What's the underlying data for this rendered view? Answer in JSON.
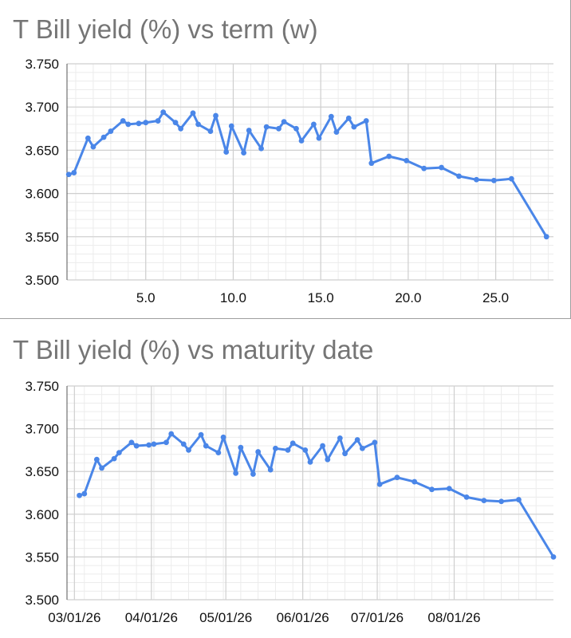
{
  "chart_data": [
    {
      "type": "line",
      "title": "T Bill yield (%) vs term (w)",
      "xlabel": "",
      "ylabel": "",
      "xlim": [
        0.5,
        28.3
      ],
      "ylim": [
        3.5,
        3.75
      ],
      "x_ticks": [
        "5.0",
        "10.0",
        "15.0",
        "20.0",
        "25.0"
      ],
      "y_ticks": [
        "3.750",
        "3.700",
        "3.650",
        "3.600",
        "3.550",
        "3.500"
      ],
      "grid": true,
      "legend": "none",
      "line_color": "#4a86e8",
      "series": [
        {
          "x": [
            0.6,
            0.9,
            1.7,
            2.0,
            2.6,
            3.0,
            3.7,
            4.0,
            4.6,
            5.0,
            5.7,
            6.0,
            6.7,
            7.0,
            7.7,
            8.0,
            8.7,
            9.0,
            9.6,
            9.9,
            10.6,
            10.9,
            11.6,
            11.9,
            12.6,
            12.9,
            13.6,
            13.9,
            14.6,
            14.9,
            15.6,
            15.9,
            16.6,
            16.9,
            17.6,
            17.9,
            18.9,
            19.9,
            20.9,
            21.9,
            22.9,
            23.9,
            24.9,
            25.9,
            27.9
          ],
          "values": [
            3.622,
            3.624,
            3.664,
            3.654,
            3.665,
            3.672,
            3.684,
            3.68,
            3.681,
            3.682,
            3.684,
            3.694,
            3.682,
            3.675,
            3.693,
            3.68,
            3.672,
            3.69,
            3.648,
            3.678,
            3.647,
            3.673,
            3.652,
            3.677,
            3.675,
            3.683,
            3.675,
            3.661,
            3.68,
            3.664,
            3.689,
            3.671,
            3.687,
            3.677,
            3.684,
            3.635,
            3.643,
            3.638,
            3.629,
            3.63,
            3.62,
            3.616,
            3.615,
            3.617,
            3.55
          ]
        }
      ]
    },
    {
      "type": "line",
      "title": "T Bill yield (%) vs maturity date",
      "xlabel": "",
      "ylabel": "",
      "xlim": [
        "2026-02-26",
        "2026-09-10"
      ],
      "ylim": [
        3.5,
        3.75
      ],
      "x_ticks": [
        "03/01/26",
        "04/01/26",
        "05/01/26",
        "06/01/26",
        "07/01/26",
        "08/01/26"
      ],
      "y_ticks": [
        "3.750",
        "3.700",
        "3.650",
        "3.600",
        "3.550",
        "3.500"
      ],
      "grid": true,
      "legend": "none",
      "line_color": "#4a86e8",
      "series": [
        {
          "x": [
            "2026-03-03",
            "2026-03-05",
            "2026-03-10",
            "2026-03-12",
            "2026-03-17",
            "2026-03-19",
            "2026-03-24",
            "2026-03-26",
            "2026-03-31",
            "2026-04-02",
            "2026-04-07",
            "2026-04-09",
            "2026-04-14",
            "2026-04-16",
            "2026-04-21",
            "2026-04-23",
            "2026-04-28",
            "2026-04-30",
            "2026-05-05",
            "2026-05-07",
            "2026-05-12",
            "2026-05-14",
            "2026-05-19",
            "2026-05-21",
            "2026-05-26",
            "2026-05-28",
            "2026-06-02",
            "2026-06-04",
            "2026-06-09",
            "2026-06-11",
            "2026-06-16",
            "2026-06-18",
            "2026-06-23",
            "2026-06-25",
            "2026-06-30",
            "2026-07-02",
            "2026-07-09",
            "2026-07-16",
            "2026-07-23",
            "2026-07-30",
            "2026-08-06",
            "2026-08-13",
            "2026-08-20",
            "2026-08-27",
            "2026-09-10"
          ],
          "values": [
            3.622,
            3.624,
            3.664,
            3.654,
            3.665,
            3.672,
            3.684,
            3.68,
            3.681,
            3.682,
            3.684,
            3.694,
            3.682,
            3.675,
            3.693,
            3.68,
            3.672,
            3.69,
            3.648,
            3.678,
            3.647,
            3.673,
            3.652,
            3.677,
            3.675,
            3.683,
            3.675,
            3.661,
            3.68,
            3.664,
            3.689,
            3.671,
            3.687,
            3.677,
            3.684,
            3.635,
            3.643,
            3.638,
            3.629,
            3.63,
            3.62,
            3.616,
            3.615,
            3.617,
            3.55
          ]
        }
      ]
    }
  ]
}
